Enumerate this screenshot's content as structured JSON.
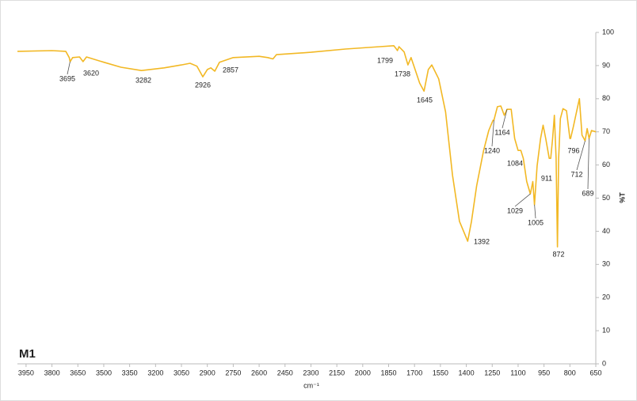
{
  "chart_data": {
    "type": "line",
    "x_label": "cm⁻¹",
    "y_label": "%T",
    "xlim": [
      4000,
      650
    ],
    "ylim": [
      0,
      100
    ],
    "xticks": [
      3950,
      3800,
      3650,
      3500,
      3350,
      3200,
      3050,
      2900,
      2750,
      2600,
      2450,
      2300,
      2150,
      2000,
      1850,
      1700,
      1550,
      1400,
      1250,
      1100,
      950,
      800,
      650
    ],
    "yticks": [
      0,
      10,
      20,
      30,
      40,
      50,
      60,
      70,
      80,
      90,
      100
    ],
    "series": [
      {
        "name": "M1",
        "color": "#f2b824",
        "x": [
          4000,
          3800,
          3720,
          3700,
          3695,
          3680,
          3640,
          3620,
          3600,
          3500,
          3400,
          3282,
          3150,
          3050,
          3000,
          2960,
          2926,
          2900,
          2880,
          2857,
          2830,
          2750,
          2600,
          2550,
          2520,
          2500,
          2300,
          2100,
          1900,
          1820,
          1805,
          1799,
          1790,
          1760,
          1738,
          1720,
          1700,
          1670,
          1645,
          1620,
          1600,
          1560,
          1520,
          1480,
          1440,
          1400,
          1392,
          1370,
          1340,
          1300,
          1270,
          1245,
          1240,
          1220,
          1200,
          1180,
          1164,
          1140,
          1120,
          1100,
          1084,
          1070,
          1050,
          1029,
          1015,
          1005,
          990,
          970,
          955,
          940,
          920,
          911,
          900,
          890,
          880,
          872,
          865,
          855,
          840,
          820,
          800,
          796,
          780,
          760,
          745,
          730,
          712,
          700,
          689,
          675,
          650
        ],
        "values": [
          94.3,
          94.5,
          94.3,
          92.4,
          91.2,
          92.4,
          92.6,
          91.2,
          92.6,
          91,
          89.5,
          88.5,
          89.3,
          90.2,
          90.7,
          89.8,
          86.6,
          88.8,
          89.3,
          88.3,
          91,
          92.4,
          92.8,
          92.4,
          92,
          93.3,
          94,
          95,
          95.7,
          96,
          95,
          94.5,
          95.7,
          94.1,
          90.2,
          92.4,
          89.3,
          84.7,
          82.3,
          88.8,
          90.2,
          86,
          76,
          57,
          43,
          38,
          37,
          43,
          53.7,
          64.4,
          70.4,
          73.5,
          73.5,
          77.6,
          77.8,
          75,
          76.8,
          76.8,
          68,
          64.4,
          64.4,
          62,
          55,
          51.3,
          55,
          48,
          59.7,
          68,
          72,
          68,
          62,
          62,
          68,
          75,
          62,
          35.3,
          62,
          74,
          77,
          76.4,
          68,
          68,
          71.6,
          76.4,
          80,
          69,
          67.3,
          71,
          68,
          70.4,
          70
        ]
      }
    ],
    "peaks": [
      3695,
      3620,
      3282,
      2926,
      2857,
      1799,
      1738,
      1645,
      1392,
      1240,
      1164,
      1084,
      1029,
      1005,
      911,
      872,
      796,
      712,
      689
    ]
  }
}
